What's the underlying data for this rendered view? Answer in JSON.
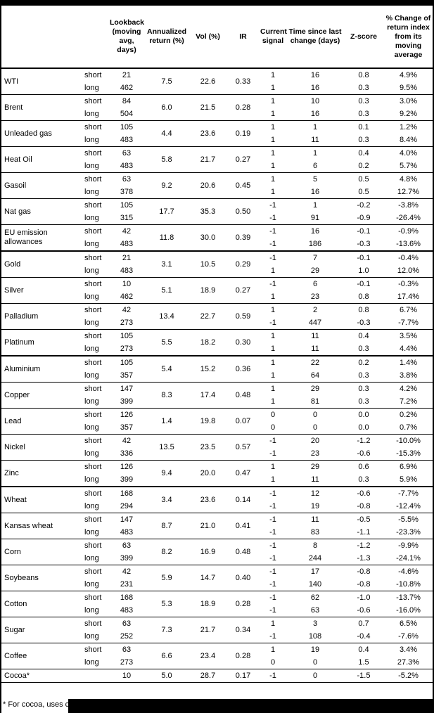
{
  "table": {
    "headers": [
      "",
      "",
      "Lookback (moving avg, days)",
      "Annualized return (%)",
      "Vol (%)",
      "IR",
      "Current signal",
      "Time since last change (days)",
      "Z-score",
      "% Change of return index from its moving average"
    ],
    "groups": [
      {
        "name": "WTI",
        "ann": "7.5",
        "vol": "22.6",
        "ir": "0.33",
        "section": false,
        "rows": [
          {
            "leg": "short",
            "lookback": "21",
            "signal": "1",
            "days": "16",
            "z": "0.8",
            "pct": "4.9%"
          },
          {
            "leg": "long",
            "lookback": "462",
            "signal": "1",
            "days": "16",
            "z": "0.3",
            "pct": "9.5%"
          }
        ]
      },
      {
        "name": "Brent",
        "ann": "6.0",
        "vol": "21.5",
        "ir": "0.28",
        "section": false,
        "rows": [
          {
            "leg": "short",
            "lookback": "84",
            "signal": "1",
            "days": "10",
            "z": "0.3",
            "pct": "3.0%"
          },
          {
            "leg": "long",
            "lookback": "504",
            "signal": "1",
            "days": "16",
            "z": "0.3",
            "pct": "9.2%"
          }
        ]
      },
      {
        "name": "Unleaded gas",
        "ann": "4.4",
        "vol": "23.6",
        "ir": "0.19",
        "section": false,
        "rows": [
          {
            "leg": "short",
            "lookback": "105",
            "signal": "1",
            "days": "1",
            "z": "0.1",
            "pct": "1.2%"
          },
          {
            "leg": "long",
            "lookback": "483",
            "signal": "1",
            "days": "11",
            "z": "0.3",
            "pct": "8.4%"
          }
        ]
      },
      {
        "name": "Heat Oil",
        "ann": "5.8",
        "vol": "21.7",
        "ir": "0.27",
        "section": false,
        "rows": [
          {
            "leg": "short",
            "lookback": "63",
            "signal": "1",
            "days": "1",
            "z": "0.4",
            "pct": "4.0%"
          },
          {
            "leg": "long",
            "lookback": "483",
            "signal": "1",
            "days": "6",
            "z": "0.2",
            "pct": "5.7%"
          }
        ]
      },
      {
        "name": "Gasoil",
        "ann": "9.2",
        "vol": "20.6",
        "ir": "0.45",
        "section": false,
        "rows": [
          {
            "leg": "short",
            "lookback": "63",
            "signal": "1",
            "days": "5",
            "z": "0.5",
            "pct": "4.8%"
          },
          {
            "leg": "long",
            "lookback": "378",
            "signal": "1",
            "days": "16",
            "z": "0.5",
            "pct": "12.7%"
          }
        ]
      },
      {
        "name": "Nat gas",
        "ann": "17.7",
        "vol": "35.3",
        "ir": "0.50",
        "section": false,
        "rows": [
          {
            "leg": "short",
            "lookback": "105",
            "signal": "-1",
            "days": "1",
            "z": "-0.2",
            "pct": "-3.8%"
          },
          {
            "leg": "long",
            "lookback": "315",
            "signal": "-1",
            "days": "91",
            "z": "-0.9",
            "pct": "-26.4%"
          }
        ]
      },
      {
        "name": "EU emission allowances",
        "ann": "11.8",
        "vol": "30.0",
        "ir": "0.39",
        "section": false,
        "rows": [
          {
            "leg": "short",
            "lookback": "42",
            "signal": "-1",
            "days": "16",
            "z": "-0.1",
            "pct": "-0.9%"
          },
          {
            "leg": "long",
            "lookback": "483",
            "signal": "-1",
            "days": "186",
            "z": "-0.3",
            "pct": "-13.6%"
          }
        ]
      },
      {
        "name": "Gold",
        "ann": "3.1",
        "vol": "10.5",
        "ir": "0.29",
        "section": true,
        "rows": [
          {
            "leg": "short",
            "lookback": "21",
            "signal": "-1",
            "days": "7",
            "z": "-0.1",
            "pct": "-0.4%"
          },
          {
            "leg": "long",
            "lookback": "483",
            "signal": "1",
            "days": "29",
            "z": "1.0",
            "pct": "12.0%"
          }
        ]
      },
      {
        "name": "Silver",
        "ann": "5.1",
        "vol": "18.9",
        "ir": "0.27",
        "section": false,
        "rows": [
          {
            "leg": "short",
            "lookback": "10",
            "signal": "-1",
            "days": "6",
            "z": "-0.1",
            "pct": "-0.3%"
          },
          {
            "leg": "long",
            "lookback": "462",
            "signal": "1",
            "days": "23",
            "z": "0.8",
            "pct": "17.4%"
          }
        ]
      },
      {
        "name": "Palladium",
        "ann": "13.4",
        "vol": "22.7",
        "ir": "0.59",
        "section": false,
        "rows": [
          {
            "leg": "short",
            "lookback": "42",
            "signal": "1",
            "days": "2",
            "z": "0.8",
            "pct": "6.7%"
          },
          {
            "leg": "long",
            "lookback": "273",
            "signal": "-1",
            "days": "447",
            "z": "-0.3",
            "pct": "-7.7%"
          }
        ]
      },
      {
        "name": "Platinum",
        "ann": "5.5",
        "vol": "18.2",
        "ir": "0.30",
        "section": false,
        "rows": [
          {
            "leg": "short",
            "lookback": "105",
            "signal": "1",
            "days": "11",
            "z": "0.4",
            "pct": "3.5%"
          },
          {
            "leg": "long",
            "lookback": "273",
            "signal": "1",
            "days": "11",
            "z": "0.3",
            "pct": "4.4%"
          }
        ]
      },
      {
        "name": "Aluminium",
        "ann": "5.4",
        "vol": "15.2",
        "ir": "0.36",
        "section": true,
        "rows": [
          {
            "leg": "short",
            "lookback": "105",
            "signal": "1",
            "days": "22",
            "z": "0.2",
            "pct": "1.4%"
          },
          {
            "leg": "long",
            "lookback": "357",
            "signal": "1",
            "days": "64",
            "z": "0.3",
            "pct": "3.8%"
          }
        ]
      },
      {
        "name": "Copper",
        "ann": "8.3",
        "vol": "17.4",
        "ir": "0.48",
        "section": false,
        "rows": [
          {
            "leg": "short",
            "lookback": "147",
            "signal": "1",
            "days": "29",
            "z": "0.3",
            "pct": "4.2%"
          },
          {
            "leg": "long",
            "lookback": "399",
            "signal": "1",
            "days": "81",
            "z": "0.3",
            "pct": "7.2%"
          }
        ]
      },
      {
        "name": "Lead",
        "ann": "1.4",
        "vol": "19.8",
        "ir": "0.07",
        "section": false,
        "rows": [
          {
            "leg": "short",
            "lookback": "126",
            "signal": "0",
            "days": "0",
            "z": "0.0",
            "pct": "0.2%"
          },
          {
            "leg": "long",
            "lookback": "357",
            "signal": "0",
            "days": "0",
            "z": "0.0",
            "pct": "0.7%"
          }
        ]
      },
      {
        "name": "Nickel",
        "ann": "13.5",
        "vol": "23.5",
        "ir": "0.57",
        "section": false,
        "rows": [
          {
            "leg": "short",
            "lookback": "42",
            "signal": "-1",
            "days": "20",
            "z": "-1.2",
            "pct": "-10.0%"
          },
          {
            "leg": "long",
            "lookback": "336",
            "signal": "-1",
            "days": "23",
            "z": "-0.6",
            "pct": "-15.3%"
          }
        ]
      },
      {
        "name": "Zinc",
        "ann": "9.4",
        "vol": "20.0",
        "ir": "0.47",
        "section": false,
        "rows": [
          {
            "leg": "short",
            "lookback": "126",
            "signal": "1",
            "days": "29",
            "z": "0.6",
            "pct": "6.9%"
          },
          {
            "leg": "long",
            "lookback": "399",
            "signal": "1",
            "days": "11",
            "z": "0.3",
            "pct": "5.9%"
          }
        ]
      },
      {
        "name": "Wheat",
        "ann": "3.4",
        "vol": "23.6",
        "ir": "0.14",
        "section": true,
        "rows": [
          {
            "leg": "short",
            "lookback": "168",
            "signal": "-1",
            "days": "12",
            "z": "-0.6",
            "pct": "-7.7%"
          },
          {
            "leg": "long",
            "lookback": "294",
            "signal": "-1",
            "days": "19",
            "z": "-0.8",
            "pct": "-12.4%"
          }
        ]
      },
      {
        "name": "Kansas wheat",
        "ann": "8.7",
        "vol": "21.0",
        "ir": "0.41",
        "section": false,
        "rows": [
          {
            "leg": "short",
            "lookback": "147",
            "signal": "-1",
            "days": "11",
            "z": "-0.5",
            "pct": "-5.5%"
          },
          {
            "leg": "long",
            "lookback": "483",
            "signal": "-1",
            "days": "83",
            "z": "-1.1",
            "pct": "-23.3%"
          }
        ]
      },
      {
        "name": "Corn",
        "ann": "8.2",
        "vol": "16.9",
        "ir": "0.48",
        "section": false,
        "rows": [
          {
            "leg": "short",
            "lookback": "63",
            "signal": "-1",
            "days": "8",
            "z": "-1.2",
            "pct": "-9.9%"
          },
          {
            "leg": "long",
            "lookback": "399",
            "signal": "-1",
            "days": "244",
            "z": "-1.3",
            "pct": "-24.1%"
          }
        ]
      },
      {
        "name": "Soybeans",
        "ann": "5.9",
        "vol": "14.7",
        "ir": "0.40",
        "section": false,
        "rows": [
          {
            "leg": "short",
            "lookback": "42",
            "signal": "-1",
            "days": "17",
            "z": "-0.8",
            "pct": "-4.6%"
          },
          {
            "leg": "long",
            "lookback": "231",
            "signal": "-1",
            "days": "140",
            "z": "-0.8",
            "pct": "-10.8%"
          }
        ]
      },
      {
        "name": "Cotton",
        "ann": "5.3",
        "vol": "18.9",
        "ir": "0.28",
        "section": false,
        "rows": [
          {
            "leg": "short",
            "lookback": "168",
            "signal": "-1",
            "days": "62",
            "z": "-1.0",
            "pct": "-13.7%"
          },
          {
            "leg": "long",
            "lookback": "483",
            "signal": "-1",
            "days": "63",
            "z": "-0.6",
            "pct": "-16.0%"
          }
        ]
      },
      {
        "name": "Sugar",
        "ann": "7.3",
        "vol": "21.7",
        "ir": "0.34",
        "section": false,
        "rows": [
          {
            "leg": "short",
            "lookback": "63",
            "signal": "1",
            "days": "3",
            "z": "0.7",
            "pct": "6.5%"
          },
          {
            "leg": "long",
            "lookback": "252",
            "signal": "-1",
            "days": "108",
            "z": "-0.4",
            "pct": "-7.6%"
          }
        ]
      },
      {
        "name": "Coffee",
        "ann": "6.6",
        "vol": "23.4",
        "ir": "0.28",
        "section": false,
        "rows": [
          {
            "leg": "short",
            "lookback": "63",
            "signal": "1",
            "days": "19",
            "z": "0.4",
            "pct": "3.4%"
          },
          {
            "leg": "long",
            "lookback": "273",
            "signal": "0",
            "days": "0",
            "z": "1.5",
            "pct": "27.3%"
          }
        ]
      },
      {
        "name": "Cocoa*",
        "ann": "5.0",
        "vol": "28.7",
        "ir": "0.17",
        "section": false,
        "rows": [
          {
            "leg": "",
            "lookback": "10",
            "signal": "-1",
            "days": "0",
            "z": "-1.5",
            "pct": "-5.2%"
          }
        ]
      }
    ]
  },
  "footnote": "* For cocoa, uses c"
}
